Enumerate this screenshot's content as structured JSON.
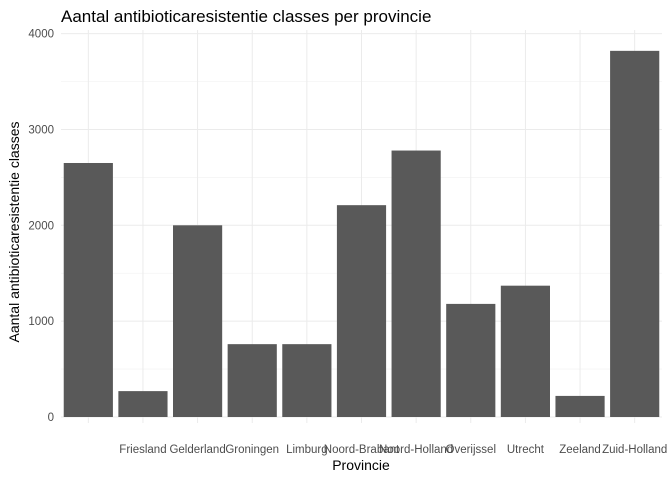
{
  "chart_data": {
    "type": "bar",
    "title": "Aantal antibioticaresistentie classes per provincie",
    "xlabel": "Provincie",
    "ylabel": "Aantal antibioticaresistentie classes",
    "categories": [
      "",
      "Friesland",
      "Gelderland",
      "Groningen",
      "Limburg",
      "Noord-Brabant",
      "Noord-Holland",
      "Overijssel",
      "Utrecht",
      "Zeeland",
      "Zuid-Holland"
    ],
    "values": [
      2650,
      270,
      2000,
      760,
      760,
      2210,
      2780,
      1180,
      1370,
      220,
      3820
    ],
    "ylim": [
      0,
      4000
    ],
    "yticks": [
      0,
      1000,
      2000,
      3000,
      4000
    ],
    "grid": true,
    "bar_color": "#595959",
    "theme": "minimal"
  }
}
